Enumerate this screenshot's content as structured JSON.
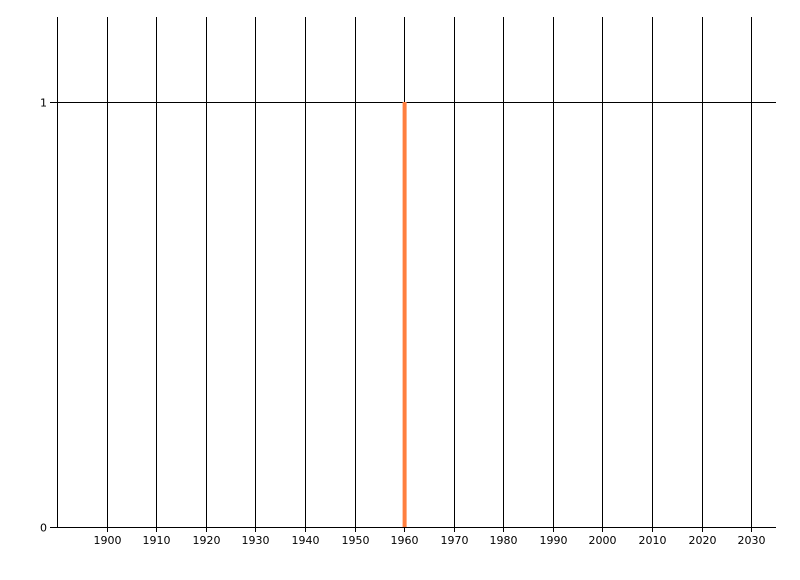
{
  "chart_data": {
    "type": "bar",
    "x": [
      1960
    ],
    "values": [
      1
    ],
    "bar_color": "#FF7F3F",
    "xlim": [
      1890,
      2035
    ],
    "ylim": [
      0,
      1.2
    ],
    "x_ticks": [
      "1900",
      "1910",
      "1920",
      "1930",
      "1940",
      "1950",
      "1960",
      "1970",
      "1980",
      "1990",
      "2000",
      "2010",
      "2020",
      "2030"
    ],
    "y_ticks": [
      "0",
      "1"
    ],
    "grid": true,
    "title": "",
    "xlabel": "",
    "ylabel": ""
  }
}
